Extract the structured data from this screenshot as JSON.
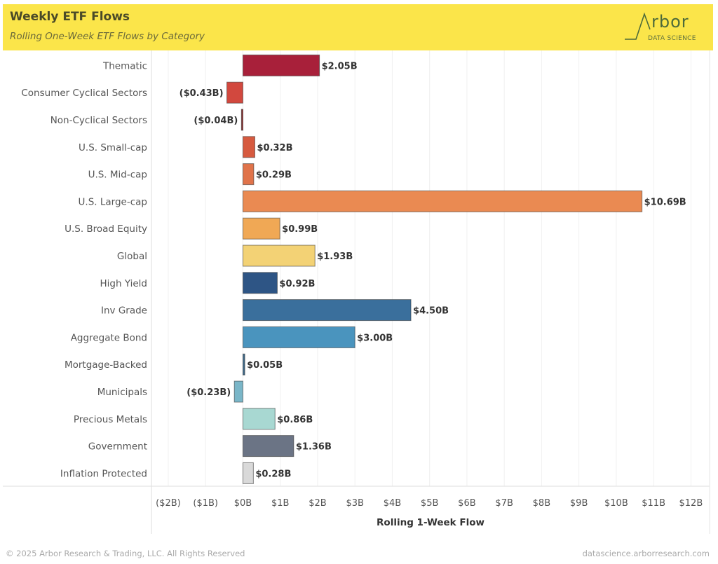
{
  "header": {
    "title": "Weekly ETF Flows",
    "subtitle": "Rolling One-Week ETF Flows by Category",
    "logo_word": "rbor",
    "logo_sub": "DATA SCIENCE",
    "background_color": "#fbe54a"
  },
  "footer": {
    "copyright": "© 2025 Arbor Research & Trading, LLC. All Rights Reserved",
    "website": "datascience.arborresearch.com"
  },
  "chart_data": {
    "type": "bar",
    "orientation": "horizontal",
    "title": "Weekly ETF Flows",
    "subtitle": "Rolling One-Week ETF Flows by Category",
    "xlabel": "Rolling 1-Week Flow",
    "ylabel": "",
    "xlim": [
      -2.45,
      12.5
    ],
    "grid": true,
    "x_ticks": [
      -2,
      -1,
      0,
      1,
      2,
      3,
      4,
      5,
      6,
      7,
      8,
      9,
      10,
      11,
      12
    ],
    "x_tick_labels": [
      "($2B)",
      "($1B)",
      "$0B",
      "$1B",
      "$2B",
      "$3B",
      "$4B",
      "$5B",
      "$6B",
      "$7B",
      "$8B",
      "$9B",
      "$10B",
      "$11B",
      "$12B"
    ],
    "categories": [
      "Thematic",
      "Consumer Cyclical Sectors",
      "Non-Cyclical Sectors",
      "U.S. Small-cap",
      "U.S. Mid-cap",
      "U.S. Large-cap",
      "U.S. Broad Equity",
      "Global",
      "High Yield",
      "Inv Grade",
      "Aggregate Bond",
      "Mortgage-Backed",
      "Municipals",
      "Precious Metals",
      "Government",
      "Inflation Protected"
    ],
    "values": [
      2.05,
      -0.43,
      -0.04,
      0.32,
      0.29,
      10.69,
      0.99,
      1.93,
      0.92,
      4.5,
      3.0,
      0.05,
      -0.23,
      0.86,
      1.36,
      0.28
    ],
    "value_labels": [
      "$2.05B",
      "($0.43B)",
      "($0.04B)",
      "$0.32B",
      "$0.29B",
      "$10.69B",
      "$0.99B",
      "$1.93B",
      "$0.92B",
      "$4.50B",
      "$3.00B",
      "$0.05B",
      "($0.23B)",
      "$0.86B",
      "$1.36B",
      "$0.28B"
    ],
    "colors": [
      "#a8203a",
      "#d2483e",
      "#8a2a2a",
      "#d65a3f",
      "#e0734a",
      "#ea8a52",
      "#f0a855",
      "#f3d275",
      "#2e5585",
      "#3a6f9c",
      "#4a94be",
      "#3e6a8a",
      "#7ab6c8",
      "#a8d8d2",
      "#6b7485",
      "#d9d9d9"
    ],
    "unit": "USD billions"
  }
}
